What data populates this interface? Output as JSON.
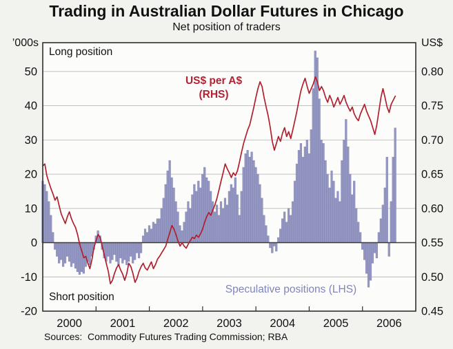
{
  "title": "Trading in Australian Dollar Futures in Chicago",
  "subtitle": "Net position of traders",
  "sources": "Sources:  Commodity Futures Trading Commission; RBA",
  "left_axis": {
    "unit": "’000s",
    "ticks": [
      50,
      40,
      30,
      20,
      10,
      0,
      -10,
      -20
    ]
  },
  "right_axis": {
    "unit": "US$",
    "ticks": [
      "0.80",
      "0.75",
      "0.70",
      "0.65",
      "0.60",
      "0.55",
      "0.50",
      "0.45"
    ]
  },
  "x_axis": {
    "year_labels": [
      "2000",
      "2001",
      "2002",
      "2003",
      "2004",
      "2005",
      "2006"
    ],
    "tick_years": [
      2001,
      2002,
      2003,
      2004,
      2005,
      2006
    ]
  },
  "labels": {
    "long": "Long position",
    "short": "Short position",
    "line_label_1": "US$ per A$",
    "line_label_2": "(RHS)",
    "bars_label": "Speculative positions (LHS)"
  },
  "colors": {
    "page_bg": "#f2f2ef",
    "plot_bg": "#fcfcfa",
    "grid": "#b8b8b8",
    "frame": "#2e2e2e",
    "zero_line": "#3a3a3a",
    "bar_fill": "#9597c3",
    "bar_edge": "#8183b3",
    "line": "#b01f2e",
    "line_label_text": "#b22233",
    "bar_label_text": "#8084ba",
    "text": "#111111"
  },
  "chart_data": {
    "type": "bar+line",
    "title": "Trading in Australian Dollar Futures in Chicago — Net position of traders",
    "x_unit": "decimal_year",
    "x_start": 2000.0,
    "x_step": 0.038462,
    "x_plot_range": [
      2000.0,
      2007.0
    ],
    "left_ylim": [
      -20,
      58.4
    ],
    "right_ylim": [
      0.45,
      0.842
    ],
    "axis_link": "right US$ value = 0.55 + left_value/200",
    "legend_position": "in-plot annotations",
    "grid": true,
    "series": [
      {
        "name": "Speculative positions (LHS)",
        "type": "bar",
        "axis": "left",
        "unit": "thousands of contracts",
        "values": [
          18,
          17,
          15,
          12,
          8,
          3,
          -2,
          -4,
          -6,
          -5,
          -7,
          -6,
          -4,
          -5.5,
          -7,
          -6,
          -7.5,
          -8.5,
          -9.3,
          -8.5,
          -9,
          -7,
          -5.5,
          -6.5,
          -4,
          -2,
          2,
          3.5,
          2,
          -2,
          -4.5,
          -5.5,
          -4,
          -6,
          -5,
          -3.5,
          -5.5,
          -6.5,
          -4.5,
          -6,
          -5,
          -6.5,
          -5.5,
          -4,
          -6,
          -5,
          -3,
          -4.5,
          -3,
          2,
          4,
          3,
          5,
          4,
          6,
          5.5,
          7,
          7,
          10,
          13,
          17,
          21,
          24,
          19,
          16,
          12,
          9,
          5,
          3.5,
          6,
          9,
          12,
          10,
          14,
          17,
          15,
          18,
          16,
          20,
          22,
          19,
          18,
          15,
          12,
          9,
          11,
          8,
          12,
          10,
          13,
          11,
          15,
          17,
          16,
          19,
          14,
          8,
          15,
          22,
          26,
          27,
          25,
          26.5,
          24,
          22,
          20,
          17,
          13,
          8,
          5,
          2,
          -1.5,
          -3,
          -1,
          -2.5,
          1.5,
          4,
          7,
          9,
          6,
          10,
          8,
          12,
          18,
          23,
          27,
          29,
          25,
          28,
          30,
          26,
          33,
          45,
          56,
          54,
          42,
          30,
          29,
          24,
          20,
          16,
          21,
          18,
          13,
          15,
          12,
          24,
          30,
          36,
          28,
          20,
          14,
          18,
          10,
          6,
          3,
          -2,
          -5,
          -9,
          -13,
          -11,
          -6,
          -3,
          -4.5,
          3,
          7,
          11,
          16,
          25,
          -4,
          12,
          25,
          33.5
        ]
      },
      {
        "name": "US$ per A$ (RHS)",
        "type": "line",
        "axis": "right",
        "unit": "US$",
        "values": [
          0.662,
          0.665,
          0.648,
          0.638,
          0.629,
          0.621,
          0.612,
          0.617,
          0.604,
          0.592,
          0.585,
          0.578,
          0.588,
          0.595,
          0.585,
          0.578,
          0.572,
          0.562,
          0.548,
          0.538,
          0.528,
          0.53,
          0.52,
          0.512,
          0.525,
          0.543,
          0.553,
          0.562,
          0.558,
          0.545,
          0.532,
          0.52,
          0.508,
          0.49,
          0.495,
          0.505,
          0.513,
          0.518,
          0.51,
          0.504,
          0.495,
          0.505,
          0.52,
          0.515,
          0.505,
          0.492,
          0.498,
          0.508,
          0.515,
          0.52,
          0.513,
          0.51,
          0.516,
          0.522,
          0.512,
          0.518,
          0.526,
          0.53,
          0.535,
          0.54,
          0.545,
          0.555,
          0.565,
          0.575,
          0.57,
          0.562,
          0.552,
          0.545,
          0.55,
          0.545,
          0.542,
          0.548,
          0.553,
          0.558,
          0.556,
          0.561,
          0.558,
          0.563,
          0.57,
          0.58,
          0.588,
          0.594,
          0.59,
          0.598,
          0.605,
          0.615,
          0.627,
          0.64,
          0.652,
          0.665,
          0.658,
          0.652,
          0.645,
          0.652,
          0.648,
          0.655,
          0.668,
          0.682,
          0.695,
          0.705,
          0.715,
          0.722,
          0.735,
          0.748,
          0.762,
          0.775,
          0.785,
          0.778,
          0.762,
          0.748,
          0.735,
          0.718,
          0.698,
          0.685,
          0.695,
          0.705,
          0.698,
          0.71,
          0.718,
          0.705,
          0.712,
          0.702,
          0.715,
          0.728,
          0.742,
          0.758,
          0.772,
          0.782,
          0.79,
          0.778,
          0.768,
          0.775,
          0.782,
          0.792,
          0.785,
          0.772,
          0.778,
          0.772,
          0.762,
          0.755,
          0.765,
          0.758,
          0.748,
          0.755,
          0.762,
          0.752,
          0.758,
          0.765,
          0.755,
          0.748,
          0.742,
          0.748,
          0.738,
          0.732,
          0.728,
          0.738,
          0.745,
          0.752,
          0.742,
          0.735,
          0.728,
          0.718,
          0.708,
          0.722,
          0.742,
          0.762,
          0.775,
          0.762,
          0.748,
          0.74,
          0.752,
          0.758,
          0.764
        ]
      }
    ]
  }
}
